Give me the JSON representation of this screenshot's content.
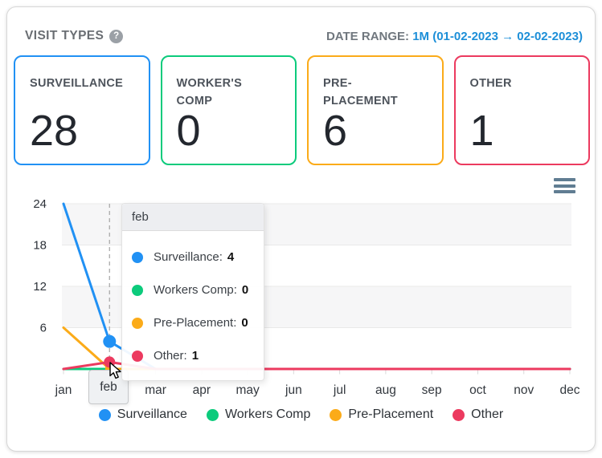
{
  "header": {
    "title": "VISIT TYPES",
    "help_icon": "?",
    "date_range_label": "DATE RANGE:",
    "date_range_value": "1M (01-02-2023 → 02-02-2023)"
  },
  "cards": [
    {
      "label": "SURVEILLANCE",
      "value": "28",
      "color": "#2191f4"
    },
    {
      "label": "WORKER'S\nCOMP",
      "value": "0",
      "color": "#0ccb7c"
    },
    {
      "label": "PRE-\nPLACEMENT",
      "value": "6",
      "color": "#fbab19"
    },
    {
      "label": "OTHER",
      "value": "1",
      "color": "#ec3a5f"
    }
  ],
  "chart_data": {
    "type": "line",
    "title": "",
    "x": [
      "jan",
      "feb",
      "mar",
      "apr",
      "may",
      "jun",
      "jul",
      "aug",
      "sep",
      "oct",
      "nov",
      "dec"
    ],
    "series": [
      {
        "name": "Surveillance",
        "color": "#2191f4",
        "values": [
          24,
          4,
          0,
          0,
          0,
          0,
          0,
          0,
          0,
          0,
          0,
          0
        ]
      },
      {
        "name": "Workers Comp",
        "color": "#0ccb7c",
        "values": [
          0,
          0,
          0,
          0,
          0,
          0,
          0,
          0,
          0,
          0,
          0,
          0
        ]
      },
      {
        "name": "Pre-Placement",
        "color": "#fbab19",
        "values": [
          6,
          0,
          0,
          0,
          0,
          0,
          0,
          0,
          0,
          0,
          0,
          0
        ]
      },
      {
        "name": "Other",
        "color": "#ec3a5f",
        "values": [
          0,
          1,
          0,
          0,
          0,
          0,
          0,
          0,
          0,
          0,
          0,
          0
        ]
      }
    ],
    "ylim": [
      0,
      24
    ],
    "yticks": [
      0,
      6,
      12,
      18,
      24
    ],
    "bands": [
      [
        24,
        18
      ],
      [
        12,
        6
      ]
    ],
    "grid": "horizontal gridlines with alternating shaded bands",
    "legend_position": "bottom",
    "hover_index": 1,
    "hover_month": "feb"
  },
  "tooltip": {
    "title": "feb",
    "rows": [
      {
        "label": "Surveillance:",
        "value": "4",
        "color": "#2191f4"
      },
      {
        "label": "Workers Comp:",
        "value": "0",
        "color": "#0ccb7c"
      },
      {
        "label": "Pre-Placement:",
        "value": "0",
        "color": "#fbab19"
      },
      {
        "label": "Other:",
        "value": "1",
        "color": "#ec3a5f"
      }
    ]
  },
  "legend": {
    "items": [
      {
        "label": "Surveillance",
        "color": "#2191f4"
      },
      {
        "label": "Workers Comp",
        "color": "#0ccb7c"
      },
      {
        "label": "Pre-Placement",
        "color": "#fbab19"
      },
      {
        "label": "Other",
        "color": "#ec3a5f"
      }
    ]
  },
  "icons": {
    "help": "help-circle-icon",
    "menu": "hamburger-menu-icon"
  }
}
